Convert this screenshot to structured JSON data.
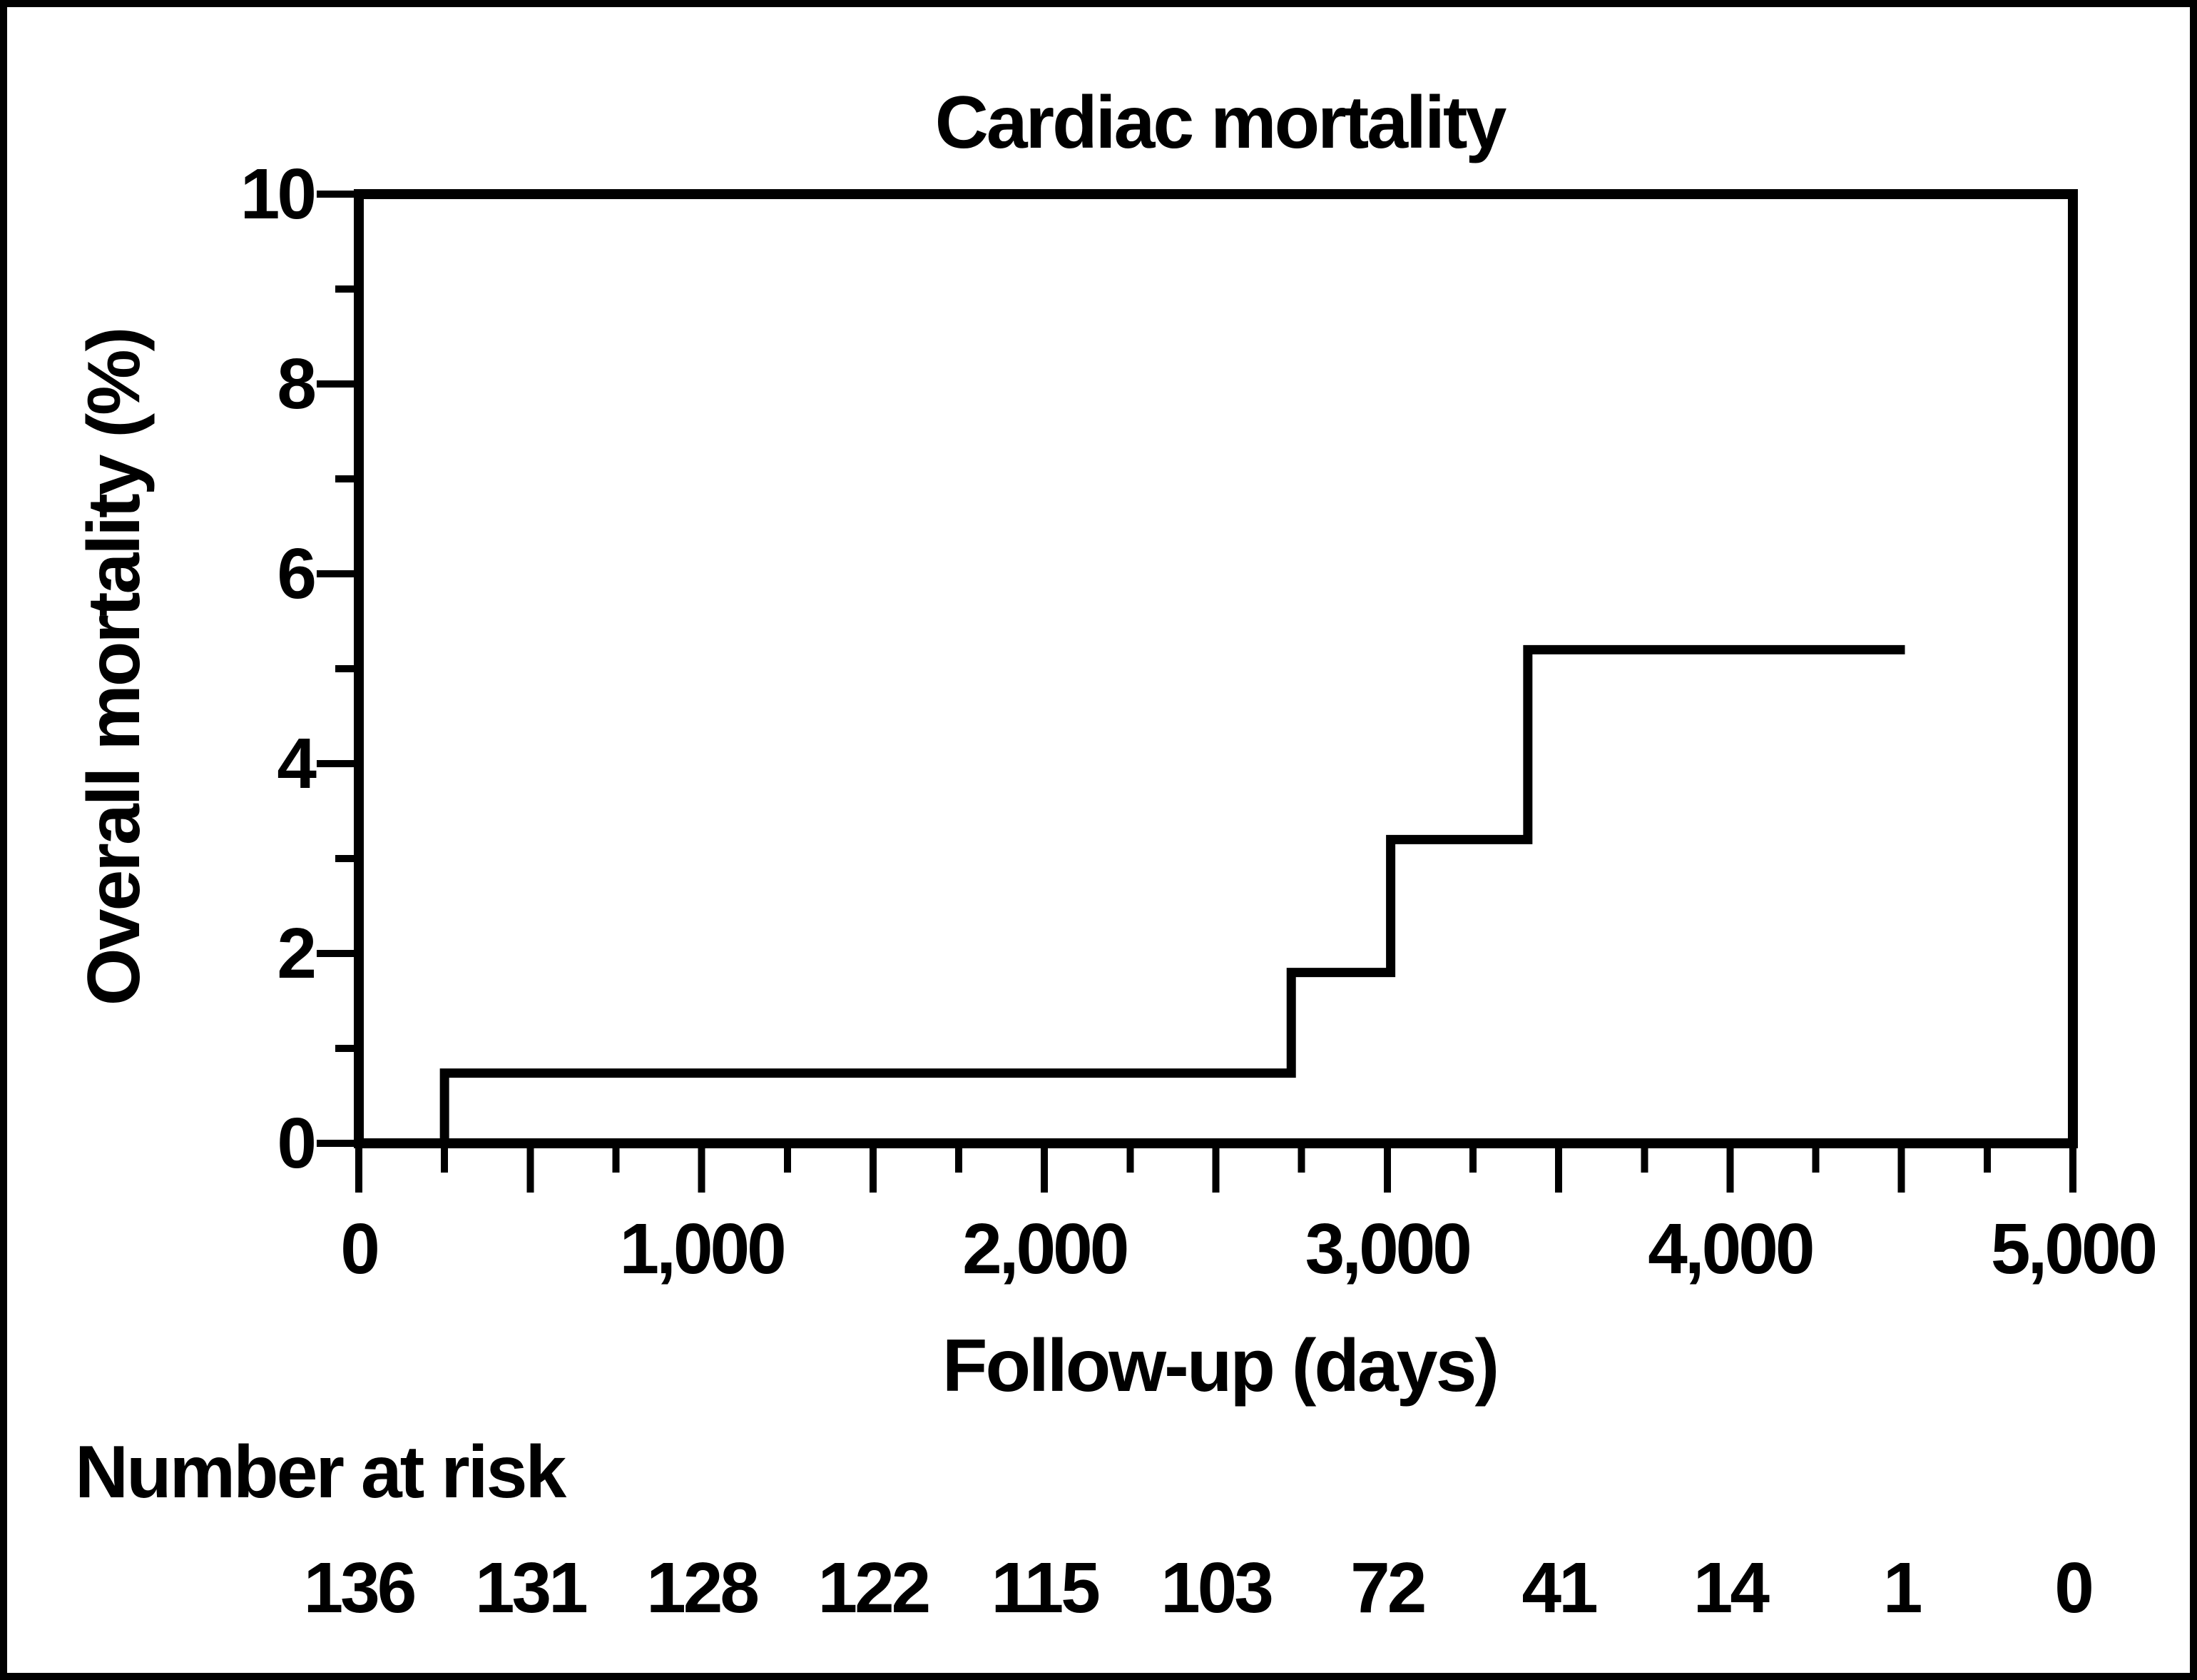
{
  "colors": {
    "foreground": "#000000",
    "background": "#ffffff"
  },
  "chart_data": {
    "type": "line",
    "subtype": "kaplan-meier-step",
    "title": "Cardiac mortality",
    "xlabel": "Follow-up (days)",
    "ylabel": "Overall mortality (%)",
    "xlim": [
      0,
      5000
    ],
    "ylim": [
      0,
      10
    ],
    "grid": "off",
    "legend": "none",
    "x_labeled_ticks": [
      0,
      1000,
      2000,
      3000,
      4000,
      5000
    ],
    "x_tick_labels": [
      "0",
      "1,000",
      "2,000",
      "3,000",
      "4,000",
      "5,000"
    ],
    "x_major_tick_interval": 500,
    "x_minor_tick_interval": 250,
    "y_labeled_ticks": [
      0,
      2,
      4,
      6,
      8,
      10
    ],
    "y_tick_labels": [
      "0",
      "2",
      "4",
      "6",
      "8",
      "10"
    ],
    "y_minor_tick_interval": 1,
    "series": [
      {
        "name": "Overall mortality",
        "start": {
          "day": 0,
          "pct": 0
        },
        "steps": [
          {
            "day": 250,
            "pct": 0.74
          },
          {
            "day": 2720,
            "pct": 1.8
          },
          {
            "day": 3010,
            "pct": 3.2
          },
          {
            "day": 3410,
            "pct": 5.2
          }
        ],
        "end_day": 4510
      }
    ],
    "number_at_risk": {
      "label": "Number at risk",
      "times": [
        0,
        500,
        1000,
        1500,
        2000,
        2500,
        3000,
        3500,
        4000,
        4500,
        5000
      ],
      "counts": [
        136,
        131,
        128,
        122,
        115,
        103,
        72,
        41,
        14,
        1,
        0
      ]
    }
  }
}
